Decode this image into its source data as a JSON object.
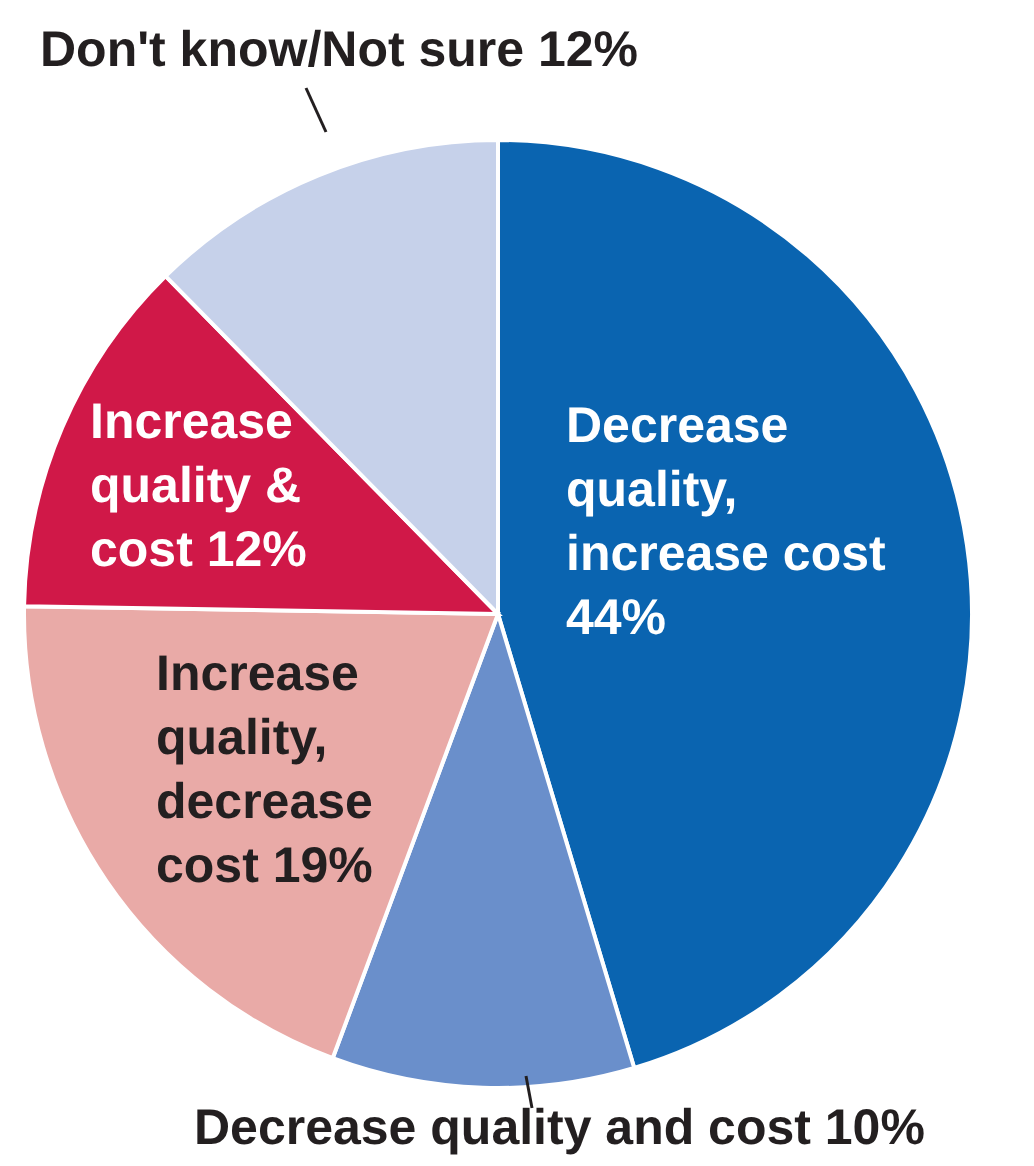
{
  "chart_data": {
    "type": "pie",
    "categories": [
      "Decrease quality, increase cost",
      "Decrease quality and cost",
      "Increase quality, decrease cost",
      "Increase quality & cost",
      "Don't know/Not sure"
    ],
    "values": [
      44,
      10,
      19,
      12,
      12
    ],
    "value_labels": [
      "44%",
      "10%",
      "19%",
      "12%",
      "12%"
    ],
    "colors": [
      "#0a64b0",
      "#6a8fcb",
      "#e9aaa7",
      "#d01848",
      "#c6d1ea"
    ]
  }
}
